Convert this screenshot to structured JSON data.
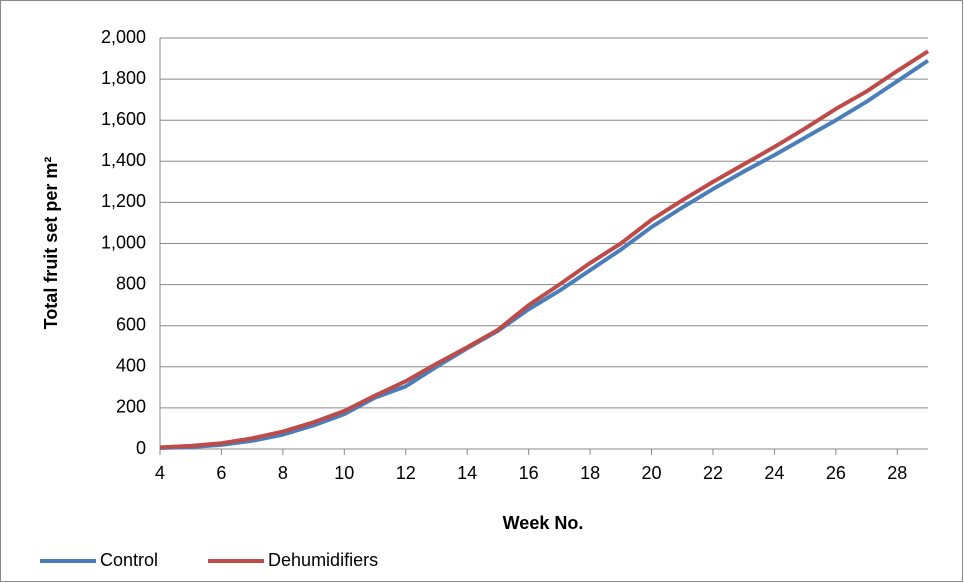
{
  "chart_data": {
    "type": "line",
    "x_label": "Week No.",
    "y_label": "Total fruit set per m²",
    "x": [
      4,
      5,
      6,
      7,
      8,
      9,
      10,
      11,
      12,
      13,
      14,
      15,
      16,
      17,
      18,
      19,
      20,
      21,
      22,
      23,
      24,
      25,
      26,
      27,
      28,
      29
    ],
    "series": [
      {
        "name": "Control",
        "color": "#4a7ebb",
        "values": [
          5,
          10,
          20,
          40,
          70,
          115,
          170,
          250,
          305,
          400,
          490,
          575,
          680,
          770,
          870,
          970,
          1080,
          1175,
          1265,
          1350,
          1430,
          1515,
          1600,
          1690,
          1790,
          1890
        ]
      },
      {
        "name": "Dehumidifiers",
        "color": "#be4b48",
        "values": [
          8,
          15,
          28,
          52,
          85,
          130,
          185,
          260,
          330,
          415,
          495,
          580,
          700,
          800,
          905,
          1000,
          1115,
          1210,
          1300,
          1385,
          1470,
          1560,
          1655,
          1740,
          1840,
          1935
        ]
      }
    ],
    "xlim": [
      4,
      29
    ],
    "xticks": [
      4,
      6,
      8,
      10,
      12,
      14,
      16,
      18,
      20,
      22,
      24,
      26,
      28
    ],
    "ylim": [
      0,
      2000
    ],
    "yticks": [
      0,
      200,
      400,
      600,
      800,
      {
        "value": 1000,
        "label": "1,000"
      },
      {
        "value": 1200,
        "label": "1,200"
      },
      {
        "value": 1400,
        "label": "1,400"
      },
      {
        "value": 1600,
        "label": "1,600"
      },
      {
        "value": 1800,
        "label": "1,800"
      },
      {
        "value": 2000,
        "label": "2,000"
      }
    ],
    "grid": true,
    "legend": "bottom"
  }
}
